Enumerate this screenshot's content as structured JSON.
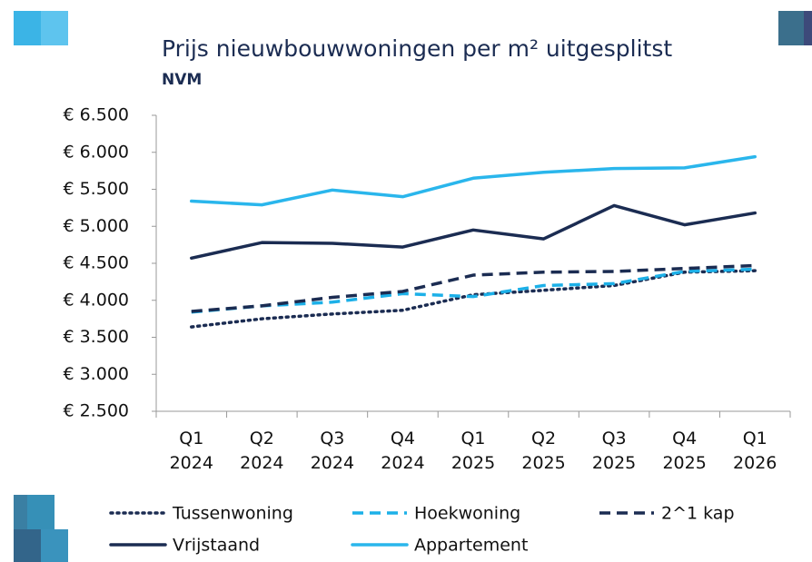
{
  "chart_data": {
    "type": "line",
    "title": "Prijs nieuwbouwwoningen per m² uitgesplitst",
    "subtitle": "NVM",
    "categories": [
      "Q1 2024",
      "Q2 2024",
      "Q3 2024",
      "Q4 2024",
      "Q1 2025",
      "Q2 2025",
      "Q3 2025",
      "Q4 2025",
      "Q1 2026"
    ],
    "ylim": [
      2500,
      6500
    ],
    "yticks": [
      {
        "value": 2500,
        "label": "€ 2.500"
      },
      {
        "value": 3000,
        "label": "€ 3.000"
      },
      {
        "value": 3500,
        "label": "€ 3.500"
      },
      {
        "value": 4000,
        "label": "€ 4.000"
      },
      {
        "value": 4500,
        "label": "€ 4.500"
      },
      {
        "value": 5000,
        "label": "€ 5.000"
      },
      {
        "value": 5500,
        "label": "€ 5.500"
      },
      {
        "value": 6000,
        "label": "€ 6.000"
      },
      {
        "value": 6500,
        "label": "€ 6.500"
      }
    ],
    "grid": false,
    "legend": "bottom",
    "series": [
      {
        "name": "Tussenwoning",
        "color": "#1b2c52",
        "dash": "dotted",
        "values": [
          3640,
          3750,
          3815,
          3865,
          4075,
          4135,
          4200,
          4380,
          4400
        ]
      },
      {
        "name": "Hoekwoning",
        "color": "#1cb0e8",
        "dash": "dashed",
        "values": [
          3840,
          3925,
          3975,
          4090,
          4050,
          4200,
          4225,
          4390,
          4420
        ]
      },
      {
        "name": "2^1 kap",
        "color": "#1b2c52",
        "dash": "dashed",
        "values": [
          3850,
          3925,
          4040,
          4120,
          4340,
          4380,
          4390,
          4430,
          4470
        ]
      },
      {
        "name": "Vrijstaand",
        "color": "#1b2c52",
        "dash": "solid",
        "values": [
          4570,
          4780,
          4770,
          4720,
          4950,
          4830,
          5280,
          5020,
          5180
        ]
      },
      {
        "name": "Appartement",
        "color": "#2ab6ec",
        "dash": "solid",
        "values": [
          5340,
          5290,
          5490,
          5400,
          5650,
          5730,
          5780,
          5790,
          5940
        ]
      }
    ]
  }
}
